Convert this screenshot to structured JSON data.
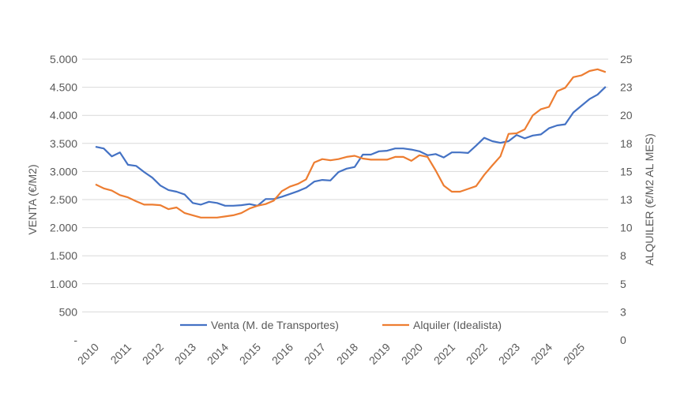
{
  "chart_data": {
    "type": "line",
    "title": "",
    "ylabel_left": "VENTA (€/M2)",
    "ylabel_right": "ALQUILER (€/M2 AL MES)",
    "ylim_left": [
      0,
      5000
    ],
    "ylim_right": [
      0,
      25
    ],
    "yticks_left": [
      "-",
      "500",
      "1.000",
      "1.500",
      "2.000",
      "2.500",
      "3.000",
      "3.500",
      "4.000",
      "4.500",
      "5.000"
    ],
    "yticks_right": [
      "0",
      "3",
      "5",
      "8",
      "10",
      "13",
      "15",
      "18",
      "20",
      "23",
      "25"
    ],
    "xticks": [
      "2010",
      "2011",
      "2012",
      "2013",
      "2014",
      "2015",
      "2016",
      "2017",
      "2018",
      "2019",
      "2020",
      "2021",
      "2022",
      "2023",
      "2024",
      "2025"
    ],
    "x_frequency": "quarterly",
    "x_start": "2010 Q1",
    "grid": true,
    "legend_position": "bottom-inside",
    "series": [
      {
        "name": "Venta (M. de Transportes)",
        "axis": "left",
        "color": "#4472C4",
        "values": [
          3440,
          3410,
          3270,
          3340,
          3120,
          3100,
          2990,
          2890,
          2750,
          2670,
          2640,
          2590,
          2440,
          2410,
          2460,
          2440,
          2390,
          2390,
          2400,
          2420,
          2390,
          2510,
          2510,
          2550,
          2600,
          2650,
          2710,
          2820,
          2850,
          2840,
          2990,
          3050,
          3080,
          3300,
          3300,
          3360,
          3370,
          3410,
          3410,
          3390,
          3360,
          3290,
          3310,
          3250,
          3340,
          3340,
          3330,
          3460,
          3600,
          3540,
          3510,
          3540,
          3650,
          3590,
          3640,
          3660,
          3770,
          3820,
          3840,
          4050,
          4170,
          4290,
          4370,
          4510
        ]
      },
      {
        "name": "Alquiler (Idealista)",
        "axis": "right",
        "color": "#ED7D31",
        "values": [
          13.85,
          13.5,
          13.3,
          12.9,
          12.7,
          12.35,
          12.05,
          12.05,
          12.0,
          11.65,
          11.8,
          11.3,
          11.1,
          10.9,
          10.9,
          10.9,
          11.0,
          11.1,
          11.3,
          11.7,
          11.95,
          12.1,
          12.4,
          13.25,
          13.65,
          13.9,
          14.3,
          15.8,
          16.1,
          16.0,
          16.1,
          16.3,
          16.4,
          16.15,
          16.05,
          16.05,
          16.05,
          16.3,
          16.3,
          15.95,
          16.45,
          16.3,
          15.1,
          13.75,
          13.2,
          13.2,
          13.45,
          13.7,
          14.7,
          15.55,
          16.35,
          18.35,
          18.4,
          18.75,
          20.0,
          20.55,
          20.75,
          22.15,
          22.45,
          23.4,
          23.55,
          23.95,
          24.1,
          23.85
        ]
      }
    ]
  }
}
